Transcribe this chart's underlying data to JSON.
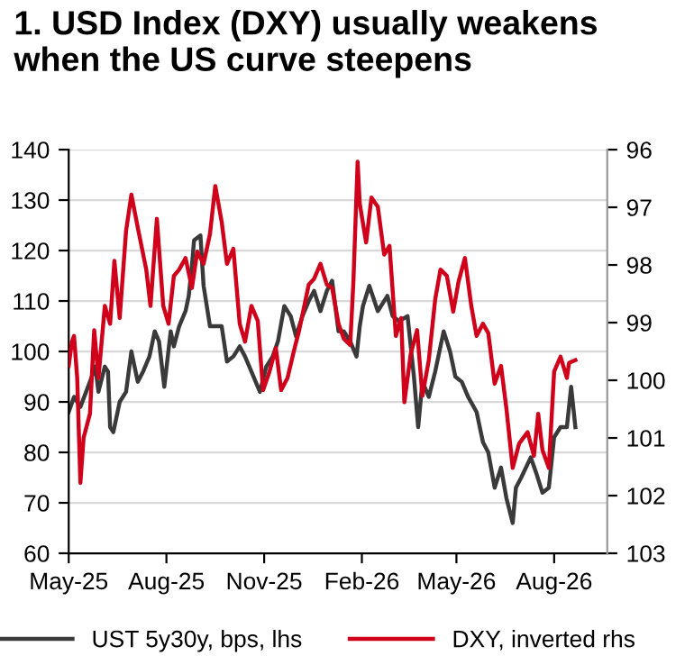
{
  "chart_data": {
    "type": "line",
    "title": "1. USD Index (DXY) usually weakens\nwhen the US curve steepens",
    "xlim": [
      "2025-05-01",
      "2026-09-20"
    ],
    "xticks": [
      {
        "value": "2025-05-01",
        "label": "May-25"
      },
      {
        "value": "2025-08-01",
        "label": "Aug-25"
      },
      {
        "value": "2025-11-01",
        "label": "Nov-25"
      },
      {
        "value": "2026-02-01",
        "label": "Feb-26"
      },
      {
        "value": "2026-05-01",
        "label": "May-26"
      },
      {
        "value": "2026-08-01",
        "label": "Aug-26"
      }
    ],
    "ylim": [
      60,
      140
    ],
    "yticks": [
      60,
      70,
      80,
      90,
      100,
      110,
      120,
      130,
      140
    ],
    "y2lim": [
      103,
      96
    ],
    "y2ticks": [
      103,
      102,
      101,
      100,
      99,
      98,
      97,
      96
    ],
    "grid": "y",
    "legend": "bottom",
    "line_style": "solid",
    "marker": "none",
    "series": [
      {
        "name": "UST 5y30y, bps, lhs",
        "color": "#3a3a3a",
        "x": [
          "2025-05-01",
          "2025-05-06",
          "2025-05-12",
          "2025-05-21",
          "2025-05-26",
          "2025-05-29",
          "2025-06-04",
          "2025-06-07",
          "2025-06-09",
          "2025-06-12",
          "2025-06-18",
          "2025-06-24",
          "2025-06-29",
          "2025-07-05",
          "2025-07-10",
          "2025-07-16",
          "2025-07-21",
          "2025-07-25",
          "2025-07-30",
          "2025-08-05",
          "2025-08-08",
          "2025-08-13",
          "2025-08-19",
          "2025-08-22",
          "2025-08-25",
          "2025-08-27",
          "2025-09-02",
          "2025-09-05",
          "2025-09-11",
          "2025-09-16",
          "2025-09-22",
          "2025-09-27",
          "2025-10-03",
          "2025-10-09",
          "2025-10-14",
          "2025-10-20",
          "2025-10-28",
          "2025-11-03",
          "2025-11-09",
          "2025-11-14",
          "2025-11-20",
          "2025-11-26",
          "2025-12-01",
          "2025-12-07",
          "2025-12-13",
          "2025-12-18",
          "2025-12-24",
          "2025-12-30",
          "2026-01-04",
          "2026-01-10",
          "2026-01-15",
          "2026-01-21",
          "2026-01-27",
          "2026-01-30",
          "2026-02-02",
          "2026-02-08",
          "2026-02-16",
          "2026-02-25",
          "2026-03-02",
          "2026-03-08",
          "2026-03-16",
          "2026-03-22",
          "2026-03-26",
          "2026-03-30",
          "2026-04-05",
          "2026-04-11",
          "2026-04-19",
          "2026-04-25",
          "2026-04-30",
          "2026-05-06",
          "2026-05-12",
          "2026-05-20",
          "2026-05-26",
          "2026-05-31",
          "2026-06-06",
          "2026-06-12",
          "2026-06-17",
          "2026-06-23",
          "2026-06-26",
          "2026-07-01",
          "2026-07-10",
          "2026-07-15",
          "2026-07-21",
          "2026-07-27",
          "2026-08-01",
          "2026-08-07",
          "2026-08-13",
          "2026-08-17",
          "2026-08-21"
        ],
        "values": [
          88,
          91,
          89,
          94,
          97,
          92,
          97,
          96,
          85,
          84,
          90,
          92,
          100,
          94,
          96,
          99,
          104,
          102,
          93,
          104,
          101,
          105,
          108,
          111,
          117,
          122,
          123,
          113,
          105,
          105,
          105,
          98,
          99,
          101,
          99,
          96,
          92,
          97,
          99,
          102,
          109,
          107,
          103,
          107,
          110,
          112,
          108,
          112,
          114,
          104,
          104,
          102,
          99,
          105,
          109,
          113,
          108,
          111,
          107,
          106,
          107,
          95,
          85,
          94,
          91,
          96,
          104,
          100,
          95,
          94,
          91,
          88,
          82,
          80,
          73,
          77,
          71,
          66,
          73,
          75,
          79,
          76,
          72,
          73,
          83,
          85,
          85,
          93,
          85
        ]
      },
      {
        "name": "DXY, inverted rhs",
        "color": "#d0021b",
        "axis": "y2",
        "x": [
          "2025-05-01",
          "2025-05-04",
          "2025-05-06",
          "2025-05-09",
          "2025-05-12",
          "2025-05-15",
          "2025-05-21",
          "2025-05-25",
          "2025-05-29",
          "2025-06-04",
          "2025-06-09",
          "2025-06-13",
          "2025-06-18",
          "2025-06-24",
          "2025-06-29",
          "2025-07-05",
          "2025-07-13",
          "2025-07-17",
          "2025-07-23",
          "2025-07-29",
          "2025-08-03",
          "2025-08-08",
          "2025-08-13",
          "2025-08-19",
          "2025-08-25",
          "2025-08-30",
          "2025-09-05",
          "2025-09-11",
          "2025-09-16",
          "2025-09-22",
          "2025-09-27",
          "2025-10-03",
          "2025-10-09",
          "2025-10-14",
          "2025-10-20",
          "2025-10-26",
          "2025-10-31",
          "2025-11-06",
          "2025-11-12",
          "2025-11-17",
          "2025-11-23",
          "2025-11-29",
          "2025-12-04",
          "2025-12-13",
          "2025-12-18",
          "2025-12-24",
          "2025-12-30",
          "2026-01-04",
          "2026-01-10",
          "2026-01-15",
          "2026-01-21",
          "2026-01-24",
          "2026-01-28",
          "2026-01-30",
          "2026-02-05",
          "2026-02-10",
          "2026-02-16",
          "2026-02-22",
          "2026-02-27",
          "2026-03-05",
          "2026-03-10",
          "2026-03-13",
          "2026-03-19",
          "2026-03-25",
          "2026-03-30",
          "2026-04-05",
          "2026-04-11",
          "2026-04-16",
          "2026-04-22",
          "2026-04-28",
          "2026-05-03",
          "2026-05-09",
          "2026-05-15",
          "2026-05-20",
          "2026-05-26",
          "2026-05-31",
          "2026-06-06",
          "2026-06-12",
          "2026-06-17",
          "2026-06-23",
          "2026-06-29",
          "2026-07-07",
          "2026-07-13",
          "2026-07-17",
          "2026-07-21",
          "2026-07-27",
          "2026-08-01",
          "2026-08-07",
          "2026-08-13",
          "2026-08-15",
          "2026-08-21"
        ],
        "values": [
          99.75,
          99.33,
          99.23,
          99.96,
          101.78,
          101.0,
          100.58,
          99.13,
          99.96,
          98.71,
          99.02,
          97.93,
          98.92,
          97.41,
          96.78,
          97.35,
          98.08,
          98.71,
          97.2,
          98.71,
          99.02,
          98.19,
          98.08,
          97.88,
          98.4,
          97.77,
          97.98,
          97.46,
          96.63,
          97.25,
          97.98,
          97.72,
          99.02,
          99.33,
          98.71,
          98.97,
          100.17,
          99.85,
          99.44,
          100.17,
          99.96,
          99.49,
          99.13,
          98.34,
          98.24,
          97.98,
          98.34,
          98.4,
          99.02,
          99.28,
          99.39,
          98.3,
          96.21,
          96.94,
          97.61,
          96.83,
          96.99,
          97.82,
          97.67,
          99.23,
          98.92,
          100.38,
          99.54,
          99.13,
          100.27,
          99.65,
          98.6,
          98.08,
          98.19,
          98.81,
          98.29,
          97.88,
          98.71,
          99.23,
          99.02,
          99.18,
          100.06,
          99.75,
          100.48,
          101.52,
          101.1,
          100.9,
          101.31,
          100.58,
          101.21,
          101.52,
          99.85,
          99.59,
          99.96,
          99.7,
          99.65
        ]
      }
    ]
  }
}
